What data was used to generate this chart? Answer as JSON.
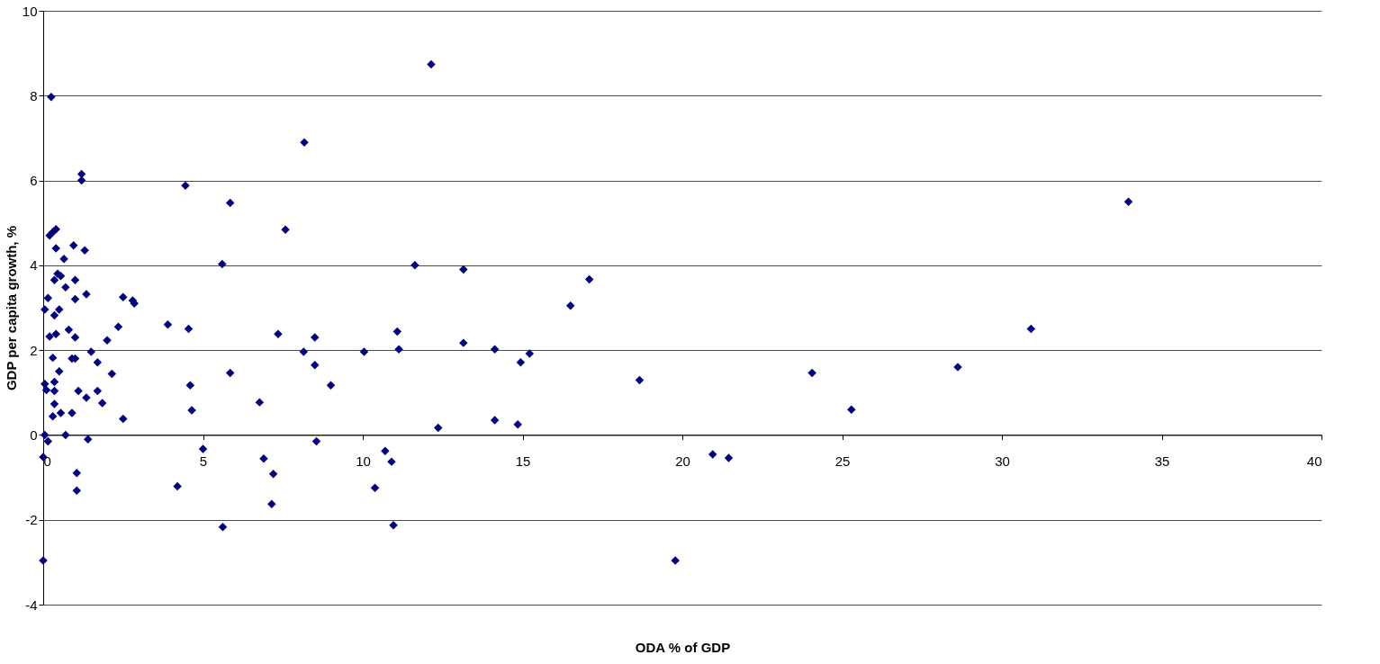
{
  "chart_data": {
    "type": "scatter",
    "xlabel": "ODA % of GDP",
    "ylabel": "GDP per capita growth, %",
    "xlim": [
      0,
      40
    ],
    "xticks": [
      0,
      5,
      10,
      15,
      20,
      25,
      30,
      35,
      40
    ],
    "ylim": [
      -4,
      10
    ],
    "yticks": [
      -4,
      -2,
      0,
      2,
      4,
      6,
      8,
      10
    ],
    "grid": "y",
    "legend": false,
    "marker": "diamond",
    "series": [
      {
        "color": "#000080",
        "x": [
          0.25,
          1.2,
          1.2,
          4.45,
          5.85,
          0.2,
          0.3,
          0.4,
          0.4,
          0.95,
          1.3,
          0.65,
          5.6,
          0.45,
          0.55,
          0.35,
          0.7,
          1.0,
          0.15,
          1.35,
          1.0,
          2.5,
          2.8,
          2.85,
          0.05,
          0.5,
          0.35,
          0.8,
          0.2,
          0.4,
          1.0,
          2.35,
          3.9,
          4.55,
          2.0,
          1.5,
          1.7,
          0.3,
          0.9,
          1.0,
          2.15,
          5.85,
          0.5,
          0.35,
          0.05,
          0.1,
          0.35,
          1.1,
          1.7,
          1.35,
          1.85,
          4.6,
          4.65,
          0.35,
          0.3,
          0.55,
          0.9,
          2.5,
          0.05,
          0.15,
          0.7,
          1.4,
          0.0,
          1.05,
          1.05,
          4.2,
          5.0,
          5.62,
          0.0,
          6.77,
          6.9,
          7.2,
          7.15,
          7.35,
          7.58,
          8.17,
          8.15,
          8.5,
          8.5,
          8.55,
          9.0,
          10.04,
          10.7,
          10.9,
          10.38,
          10.96,
          11.08,
          11.13,
          11.63,
          12.14,
          12.36,
          13.15,
          13.15,
          14.13,
          14.13,
          14.85,
          14.94,
          15.22,
          16.5,
          17.09,
          18.66,
          19.78,
          20.95,
          21.45,
          24.06,
          25.29,
          28.62,
          30.91,
          33.96
        ],
        "values": [
          7.97,
          6.15,
          6.0,
          5.88,
          5.47,
          4.7,
          4.78,
          4.85,
          4.4,
          4.47,
          4.35,
          4.15,
          4.03,
          3.8,
          3.75,
          3.65,
          3.48,
          3.65,
          3.23,
          3.32,
          3.2,
          3.25,
          3.17,
          3.1,
          2.96,
          2.96,
          2.82,
          2.48,
          2.32,
          2.38,
          2.3,
          2.55,
          2.6,
          2.5,
          2.23,
          1.96,
          1.71,
          1.82,
          1.8,
          1.8,
          1.44,
          1.46,
          1.5,
          1.25,
          1.2,
          1.06,
          1.04,
          1.04,
          1.04,
          0.88,
          0.75,
          1.17,
          0.58,
          0.73,
          0.44,
          0.52,
          0.52,
          0.38,
          0.0,
          -0.15,
          0.0,
          -0.1,
          -0.52,
          -0.9,
          -1.31,
          -1.21,
          -0.33,
          -2.17,
          -2.96,
          0.77,
          -0.56,
          -0.92,
          -1.63,
          2.38,
          4.84,
          6.9,
          1.96,
          2.3,
          1.65,
          -0.15,
          1.17,
          1.96,
          -0.38,
          -0.63,
          -1.25,
          -2.13,
          2.44,
          2.02,
          4.0,
          8.74,
          0.17,
          3.9,
          2.17,
          2.02,
          0.35,
          0.25,
          1.71,
          1.92,
          3.05,
          3.67,
          1.29,
          -2.96,
          -0.46,
          -0.54,
          1.46,
          0.6,
          1.6,
          2.5,
          5.5
        ]
      }
    ]
  }
}
